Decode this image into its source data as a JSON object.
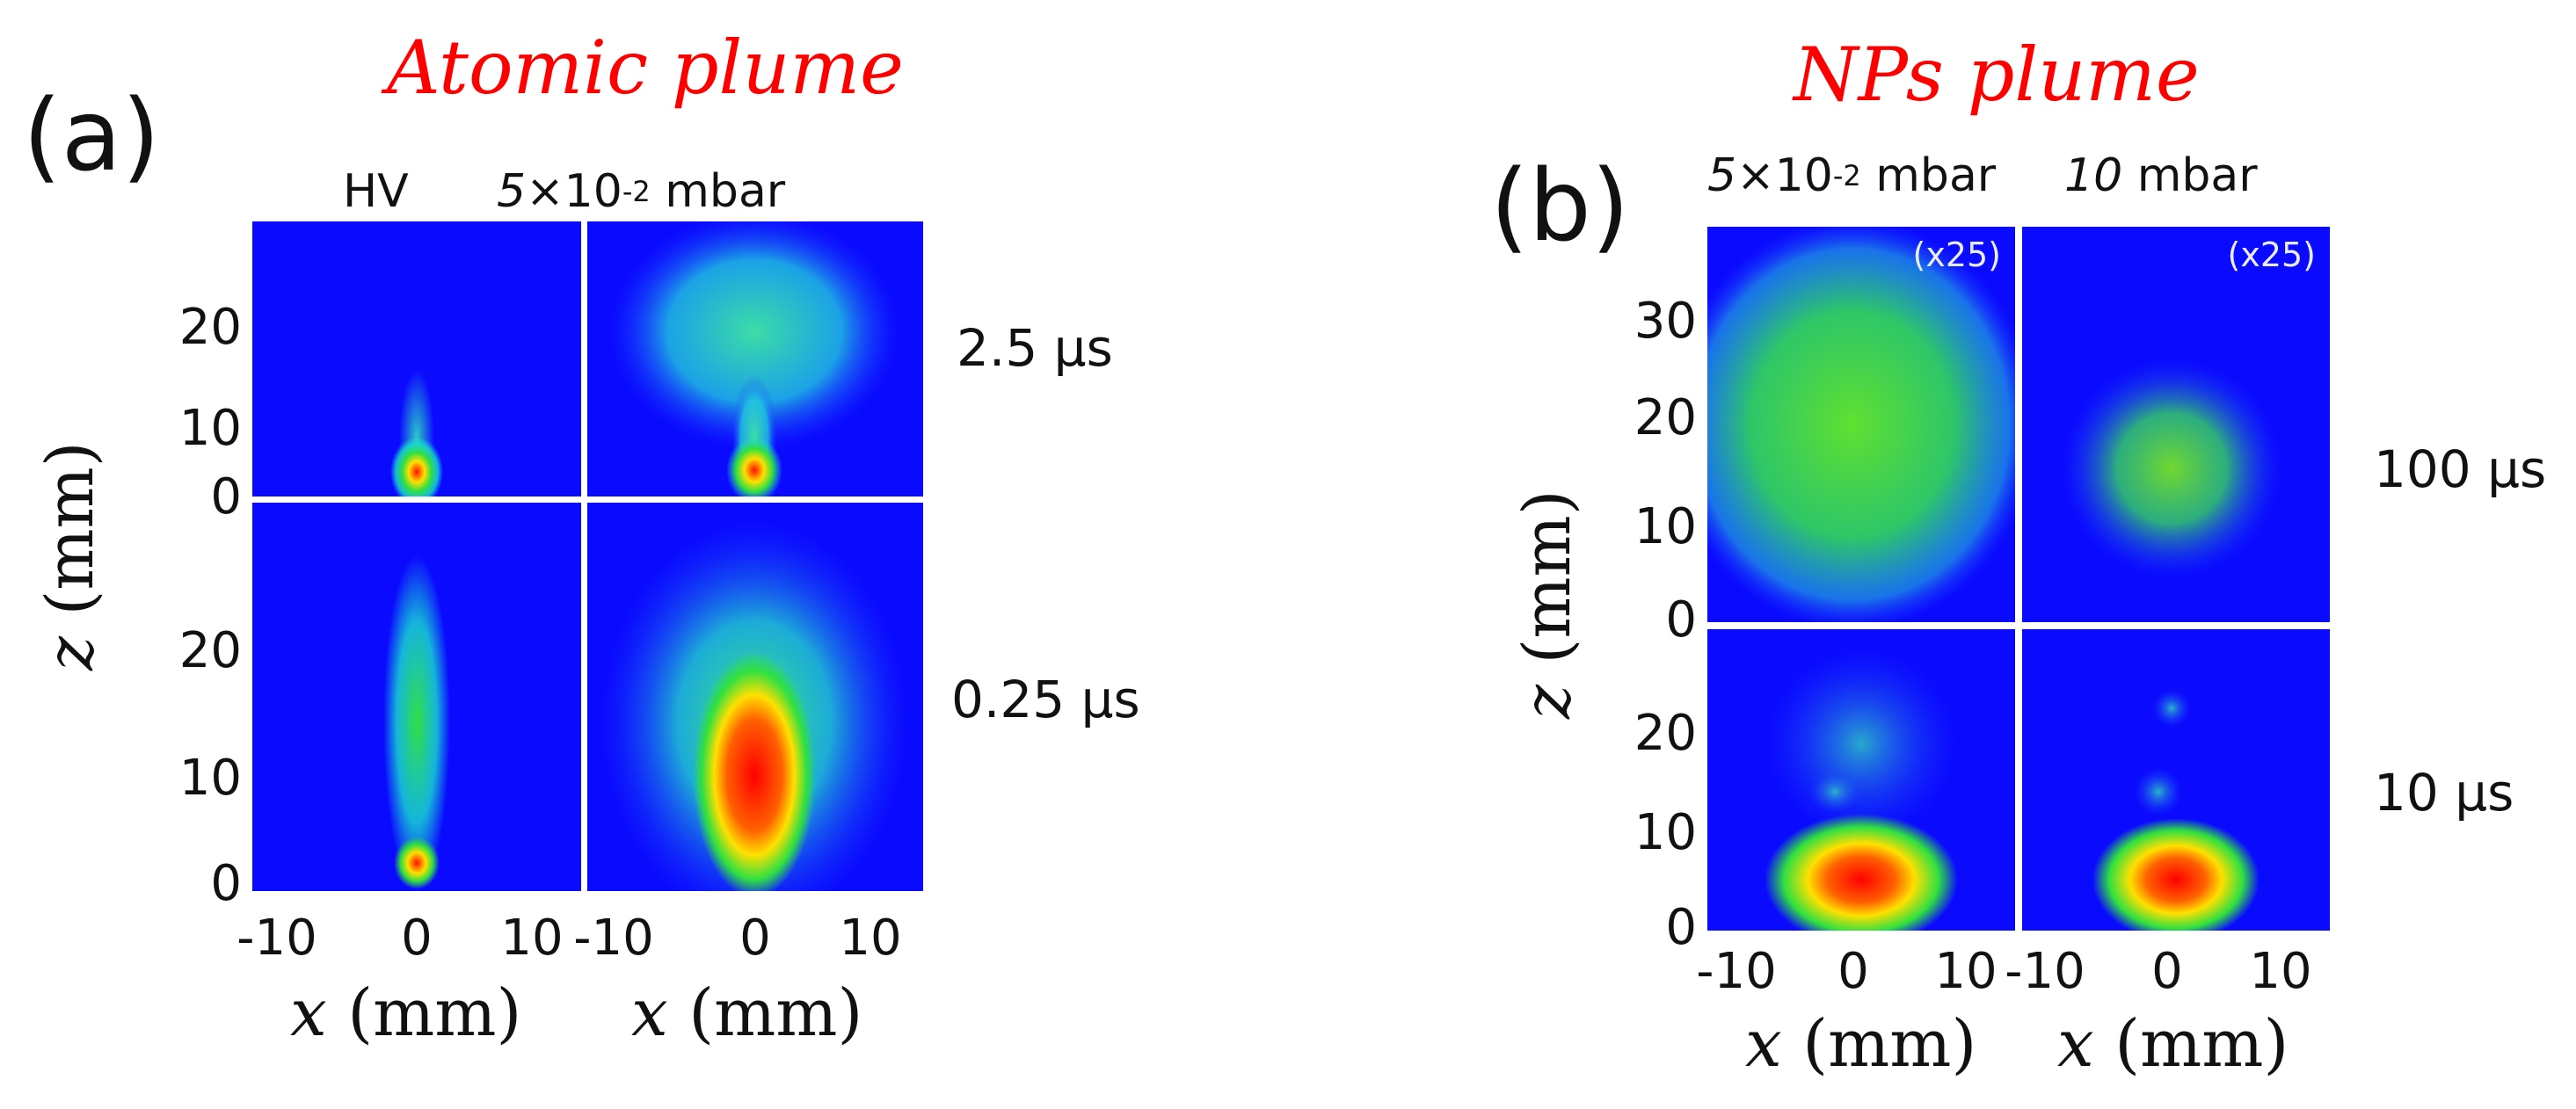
{
  "figure_a": {
    "title": "Atomic plume",
    "label": "(a)",
    "columns": [
      {
        "pre": "",
        "main": "HV",
        "exp": "",
        "post": ""
      },
      {
        "pre": "5",
        "main": "×10",
        "exp": "-2",
        "post": " mbar"
      }
    ],
    "times": [
      "2.5 μs",
      "0.25 μs"
    ],
    "y_ticks_top": [
      "20",
      "10",
      "0"
    ],
    "y_ticks_bottom": [
      "20",
      "10",
      "0"
    ],
    "x_ticks": [
      "-10",
      "0",
      "10"
    ],
    "x_var": "x",
    "x_unit": " (mm)",
    "y_var": "z",
    "y_unit": " (mm)"
  },
  "figure_b": {
    "title": "NPs plume",
    "label": "(b)",
    "columns": [
      {
        "pre": "5",
        "main": "×10",
        "exp": "-2",
        "post": " mbar"
      },
      {
        "pre": "10",
        "main": "",
        "exp": "",
        "post": " mbar"
      }
    ],
    "times": [
      "100 μs",
      "10 μs"
    ],
    "scale_factor": "(x25)",
    "y_ticks_top": [
      "30",
      "20",
      "10",
      "0"
    ],
    "y_ticks_bottom": [
      "20",
      "10",
      "0"
    ],
    "x_ticks": [
      "-10",
      "0",
      "10"
    ],
    "x_var": "x",
    "x_unit": " (mm)",
    "y_var": "z",
    "y_unit": " (mm)"
  },
  "colors": {
    "background": "#0a0aff",
    "plume_low": "#18e0d0",
    "plume_mid": "#30e040",
    "plume_high": "#ffe000",
    "plume_peak": "#ff1000",
    "title": "#ff0000"
  }
}
